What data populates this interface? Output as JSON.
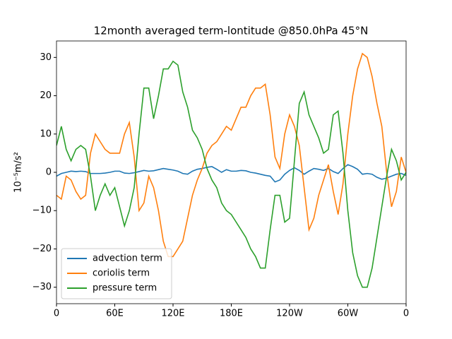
{
  "chart_data": {
    "type": "line",
    "title": "12month averaged term-lontitude @850.0hPa 45°N",
    "y_label": "10⁻⁵m/s²",
    "x": [
      0,
      5,
      10,
      15,
      20,
      25,
      30,
      35,
      40,
      45,
      50,
      55,
      60,
      65,
      70,
      75,
      80,
      85,
      90,
      95,
      100,
      105,
      110,
      115,
      120,
      125,
      130,
      135,
      140,
      145,
      150,
      155,
      160,
      165,
      170,
      175,
      180,
      185,
      190,
      195,
      200,
      205,
      210,
      215,
      220,
      225,
      230,
      235,
      240,
      245,
      250,
      255,
      260,
      265,
      270,
      275,
      280,
      285,
      290,
      295,
      300,
      305,
      310,
      315,
      320,
      325,
      330,
      335,
      340,
      345,
      350,
      355,
      360
    ],
    "series": [
      {
        "name": "advection term",
        "color": "#1f77b4",
        "values": [
          -1,
          -0.3,
          0,
          0.3,
          0.2,
          0.3,
          0.2,
          -0.3,
          -0.3,
          -0.3,
          -0.2,
          0,
          0.3,
          0.3,
          -0.2,
          -0.3,
          -0.1,
          0.2,
          0.5,
          0.3,
          0.4,
          0.7,
          1,
          0.8,
          0.6,
          0.3,
          -0.3,
          -0.5,
          0.3,
          0.8,
          1,
          1.3,
          1.5,
          0.8,
          0,
          0.7,
          0.3,
          0.3,
          0.5,
          0.4,
          0,
          -0.2,
          -0.5,
          -0.8,
          -1,
          -2.5,
          -2,
          -0.5,
          0.5,
          1.2,
          0.5,
          -0.5,
          0.3,
          1,
          0.8,
          0.5,
          1,
          0.2,
          -0.3,
          1,
          2,
          1.5,
          0.8,
          -0.5,
          -0.3,
          -0.5,
          -1.3,
          -1.8,
          -1.5,
          -1,
          -0.5,
          -0.3,
          -0.8
        ]
      },
      {
        "name": "coriolis term",
        "color": "#ff7f0e",
        "values": [
          -6,
          -7,
          -1,
          -2,
          -5,
          -7,
          -6,
          5,
          10,
          8,
          6,
          5,
          5,
          5,
          10,
          13,
          4,
          -10,
          -8,
          -1,
          -4,
          -10,
          -18,
          -22,
          -22,
          -20,
          -18,
          -12,
          -6,
          -2,
          1,
          5,
          7,
          8,
          10,
          12,
          11,
          14,
          17,
          17,
          20,
          22,
          22,
          23,
          15,
          4,
          1,
          10,
          15,
          12,
          7,
          -4,
          -15,
          -12,
          -6,
          -2,
          2,
          -5,
          -11,
          -3,
          10,
          20,
          27,
          31,
          30,
          25,
          18,
          12,
          0,
          -9,
          -5,
          4,
          0
        ]
      },
      {
        "name": "pressure term",
        "color": "#2ca02c",
        "values": [
          7,
          12,
          6,
          3,
          6,
          7,
          6,
          -1,
          -10,
          -6,
          -3,
          -6,
          -4,
          -9,
          -14,
          -10,
          -4,
          10,
          22,
          22,
          14,
          20,
          27,
          27,
          29,
          28,
          21,
          17,
          11,
          9,
          6,
          1,
          -2,
          -4,
          -8,
          -10,
          -11,
          -13,
          -15,
          -17,
          -20,
          -22,
          -25,
          -25,
          -15,
          -6,
          -6,
          -13,
          -12,
          3,
          18,
          21,
          15,
          12,
          9,
          5,
          6,
          15,
          16,
          5,
          -10,
          -21,
          -27,
          -30,
          -30,
          -25,
          -17,
          -9,
          -1,
          6,
          3,
          -2,
          0
        ]
      }
    ],
    "xlim": [
      0,
      360
    ],
    "xticks": [
      0,
      {
        "value": 60,
        "label": "60E"
      },
      {
        "value": 120,
        "label": "120E"
      },
      {
        "value": 180,
        "label": "180E"
      },
      {
        "value": 240,
        "label": "120W"
      },
      {
        "value": 300,
        "label": "60W"
      },
      {
        "value": 360,
        "label": "0"
      }
    ],
    "ylim": [
      -34.3,
      34.3
    ],
    "yticks": [
      {
        "value": -30,
        "label": "−30"
      },
      {
        "value": -20,
        "label": "−20"
      },
      {
        "value": -10,
        "label": "−10"
      },
      0,
      10,
      20,
      30
    ],
    "legend": "lower left"
  }
}
